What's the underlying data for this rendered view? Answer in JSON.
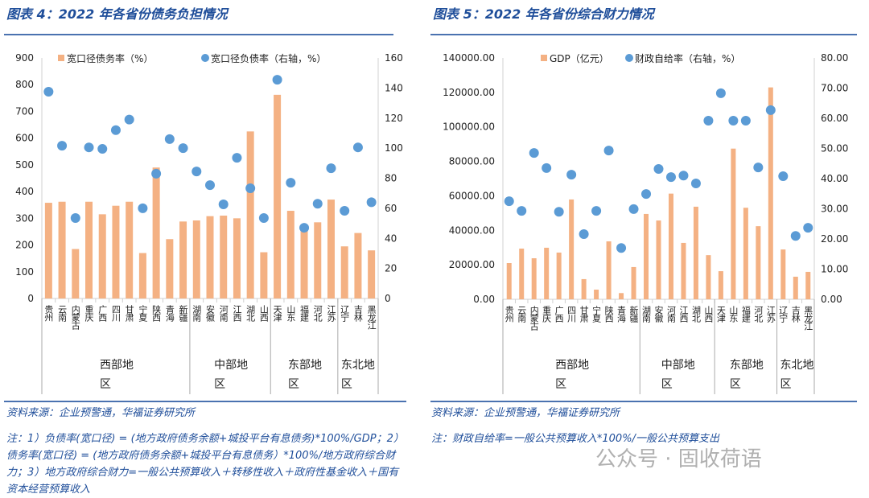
{
  "chart_data": [
    {
      "type": "bar+scatter",
      "title": "图表 4：2022 年各省份债务负担情况",
      "categories": [
        "贵州",
        "云南",
        "内蒙古",
        "重庆",
        "广西",
        "四川",
        "甘肃",
        "宁夏",
        "陕西",
        "青海",
        "新疆",
        "湖南",
        "安徽",
        "河南",
        "江西",
        "湖北",
        "山西",
        "天津",
        "山东",
        "福建",
        "河北",
        "江苏",
        "辽宁",
        "吉林",
        "黑龙江"
      ],
      "groups": [
        {
          "label": "西部地区",
          "count": 11
        },
        {
          "label": "中部地区",
          "count": 6
        },
        {
          "label": "东部地区",
          "count": 5
        },
        {
          "label": "东北地区",
          "count": 3
        }
      ],
      "series": [
        {
          "name": "宽口径债务率（%）",
          "kind": "bar",
          "axis": "left",
          "values": [
            358,
            362,
            185,
            362,
            315,
            347,
            362,
            170,
            490,
            222,
            288,
            292,
            308,
            310,
            300,
            625,
            173,
            762,
            328,
            270,
            285,
            370,
            195,
            245,
            180
          ]
        },
        {
          "name": "宽口径负债率（右轴，%）",
          "kind": "scatter",
          "axis": "right",
          "values": [
            137.5,
            101.6,
            53.5,
            100.5,
            99.5,
            112,
            119,
            60,
            83,
            106,
            100,
            84.5,
            75.4,
            62.6,
            93.6,
            73.3,
            53.5,
            145.5,
            77,
            47,
            63,
            86.6,
            58.3,
            100.5,
            64
          ]
        }
      ],
      "ylim": [
        0,
        900
      ],
      "yticks": [
        "0",
        "100",
        "200",
        "300",
        "400",
        "500",
        "600",
        "700",
        "800",
        "900"
      ],
      "y2lim": [
        0,
        160
      ],
      "y2ticks": [
        "0",
        "20",
        "40",
        "60",
        "80",
        "100",
        "120",
        "140",
        "160"
      ],
      "legend": "top",
      "grid": false
    },
    {
      "type": "bar+scatter",
      "title": "图表 5：2022 年各省份综合财力情况",
      "categories": [
        "贵州",
        "云南",
        "内蒙古",
        "重庆",
        "广西",
        "四川",
        "甘肃",
        "宁夏",
        "陕西",
        "青海",
        "新疆",
        "湖南",
        "安徽",
        "河南",
        "江西",
        "湖北",
        "山西",
        "天津",
        "山东",
        "福建",
        "河北",
        "江苏",
        "辽宁",
        "吉林",
        "黑龙江"
      ],
      "groups": [
        {
          "label": "西部地区",
          "count": 11
        },
        {
          "label": "中部地区",
          "count": 6
        },
        {
          "label": "东部地区",
          "count": 5
        },
        {
          "label": "东北地区",
          "count": 3
        }
      ],
      "series": [
        {
          "name": "GDP（亿元）",
          "kind": "bar",
          "axis": "left",
          "values": [
            21000,
            29400,
            23800,
            29900,
            27100,
            57900,
            11700,
            5600,
            33600,
            3600,
            18700,
            49500,
            45700,
            61300,
            32700,
            53700,
            25600,
            16300,
            87400,
            53100,
            42400,
            122900,
            28900,
            13100,
            15900
          ]
        },
        {
          "name": "财政自给率（右轴，%）",
          "kind": "scatter",
          "axis": "right",
          "values": [
            32.5,
            29.3,
            48.5,
            43.5,
            29,
            41.3,
            21.6,
            29.3,
            49.3,
            17,
            29.9,
            34.9,
            43.2,
            40.5,
            41,
            38.4,
            59.2,
            68.3,
            59.2,
            59.2,
            43.7,
            62.7,
            40.8,
            21,
            23.7
          ]
        }
      ],
      "ylim": [
        0,
        140000
      ],
      "yticks": [
        "0.00",
        "20000.00",
        "40000.00",
        "60000.00",
        "80000.00",
        "100000.00",
        "120000.00",
        "140000.00"
      ],
      "y2lim": [
        0,
        80
      ],
      "y2ticks": [
        "0.00",
        "10.00",
        "20.00",
        "30.00",
        "40.00",
        "50.00",
        "60.00",
        "70.00",
        "80.00"
      ],
      "legend": "top",
      "grid": false
    }
  ],
  "colors": {
    "bar": "#F4B183",
    "dot": "#5B9BD5",
    "title": "#1F4E9A"
  },
  "left": {
    "source": "资料来源：企业预警通，华福证券研究所",
    "note": "注：1）负债率(宽口径) = (地方政府债务余额+城投平台有息债务)*100%/GDP；2）债务率(宽口径) = (地方政府债务余额+城投平台有息债务）*100%/地方政府综合财力；3）地方政府综合财力=一般公共预算收入＋转移性收入＋政府性基金收入＋国有资本经营预算收入"
  },
  "right": {
    "source": "资料来源：企业预警通，华福证券研究所",
    "note": "注：财政自给率=一般公共预算收入*100%/一般公共预算支出"
  },
  "watermark": "公众号 · 固收荷语"
}
